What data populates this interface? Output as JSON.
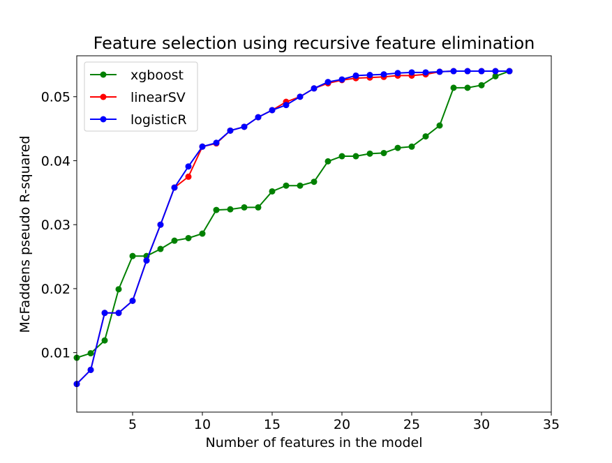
{
  "chart_data": {
    "type": "line",
    "title": "Feature selection using recursive feature elimination",
    "xlabel": "Number of features in the model",
    "ylabel": "McFaddens pseudo R-squared",
    "xlim": [
      1,
      35
    ],
    "ylim": [
      0.0007,
      0.0564
    ],
    "x_ticks": [
      5,
      10,
      15,
      20,
      25,
      30,
      35
    ],
    "x_tick_labels": [
      "5",
      "10",
      "15",
      "20",
      "25",
      "30",
      "35"
    ],
    "y_ticks": [
      0.01,
      0.02,
      0.03,
      0.04,
      0.05
    ],
    "y_tick_labels": [
      "0.01",
      "0.02",
      "0.03",
      "0.04",
      "0.05"
    ],
    "grid": false,
    "legend_position": "top-left",
    "x": [
      1,
      2,
      3,
      4,
      5,
      6,
      7,
      8,
      9,
      10,
      11,
      12,
      13,
      14,
      15,
      16,
      17,
      18,
      19,
      20,
      21,
      22,
      23,
      24,
      25,
      26,
      27,
      28,
      29,
      30,
      31,
      32
    ],
    "series": [
      {
        "name": "xgboost",
        "color": "#008000",
        "values": [
          0.0092,
          0.0099,
          0.0119,
          0.0199,
          0.0251,
          0.0251,
          0.0262,
          0.0275,
          0.0279,
          0.0286,
          0.0323,
          0.0324,
          0.0327,
          0.0327,
          0.0352,
          0.0361,
          0.0361,
          0.0367,
          0.0399,
          0.0407,
          0.0407,
          0.0411,
          0.0412,
          0.042,
          0.0422,
          0.0438,
          0.0455,
          0.0514,
          0.0514,
          0.0518,
          0.0532,
          0.054
        ]
      },
      {
        "name": "linearSV",
        "color": "#ff0000",
        "values": [
          0.0051,
          0.0073,
          0.0162,
          0.0162,
          0.0181,
          0.0244,
          0.03,
          0.0358,
          0.0375,
          0.0422,
          0.0427,
          0.0447,
          0.0453,
          0.0468,
          0.0479,
          0.0492,
          0.05,
          0.0513,
          0.0521,
          0.0526,
          0.0529,
          0.053,
          0.0531,
          0.0533,
          0.0533,
          0.0535,
          0.0539,
          0.054,
          0.054,
          0.054,
          0.054,
          0.054
        ]
      },
      {
        "name": "logisticR",
        "color": "#0000ff",
        "values": [
          0.0051,
          0.0073,
          0.0162,
          0.0162,
          0.0181,
          0.0244,
          0.03,
          0.0358,
          0.0391,
          0.0422,
          0.0428,
          0.0447,
          0.0453,
          0.0468,
          0.0479,
          0.0487,
          0.05,
          0.0513,
          0.0523,
          0.0527,
          0.0533,
          0.0534,
          0.0535,
          0.0537,
          0.0538,
          0.0538,
          0.0539,
          0.054,
          0.054,
          0.054,
          0.054,
          0.054
        ]
      }
    ]
  }
}
